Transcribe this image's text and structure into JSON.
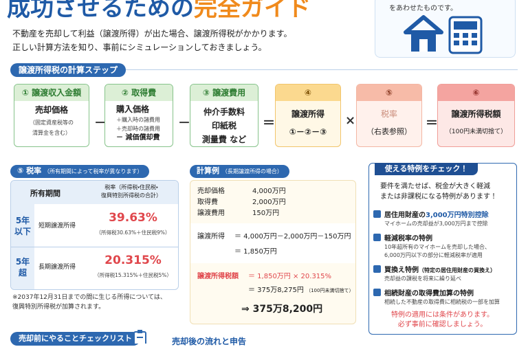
{
  "header": {
    "title": "成功させるための",
    "title_highlight": "完全ガイド",
    "corner_note": "をあわせたものです。"
  },
  "intro": [
    "不動産を売却して利益（譲渡所得）が出た場合、譲渡所得税がかかります。",
    "正しい計算方法を知り、事前にシミュレーションしておきましょう。"
  ],
  "steps_section": {
    "title": "譲渡所得税の計算ステップ",
    "steps": [
      {
        "number": "①",
        "title": "譲渡収入金額",
        "lines": [
          "売却価格",
          "（固定資産税等の",
          "清算金を含む）"
        ]
      },
      {
        "number": "②",
        "title": "取得費",
        "lines": [
          "購入価格",
          "＋購入時の諸費用",
          "＋売却時の諸費用",
          "－ 減価償却費"
        ]
      },
      {
        "number": "③",
        "title": "譲渡費用",
        "lines": [
          "仲介手数料",
          "印紙税",
          "測量費 など"
        ]
      },
      {
        "number": "④",
        "lines": [
          "譲渡所得",
          "①－②－③"
        ]
      },
      {
        "number": "⑤",
        "lines": [
          "税率",
          "（右表参照）"
        ]
      },
      {
        "number": "⑥",
        "lines": [
          "譲渡所得税額",
          "（100円未満切捨て）"
        ]
      }
    ],
    "operators": [
      "－",
      "－",
      "＝",
      "×",
      "＝"
    ]
  },
  "rates": {
    "number": "⑤",
    "title": "税率",
    "note": "（所有期間によって税率が異なります）",
    "col_period": "所有期間",
    "col_rate": [
      "税率（所得税・住民税・",
      "復興特別所得税の合計）"
    ],
    "rows": [
      {
        "period": [
          "5年",
          "以下"
        ],
        "type": "短期譲渡所得",
        "rate": "39.63%",
        "breakdown": "（所得税30.63%＋住民税9%）"
      },
      {
        "period": [
          "5年",
          "超"
        ],
        "type": "長期譲渡所得",
        "rate": "20.315%",
        "breakdown": "（所得税15.315%＋住民税5%）"
      }
    ],
    "footnote": [
      "※2037年12月31日までの間に生じる所得については、",
      "復興特別所得税が加算されます。"
    ]
  },
  "example": {
    "title": "計算例",
    "subtitle": "（長期譲渡所得の場合）",
    "items": [
      [
        "売却価格",
        "4,000万円"
      ],
      [
        "取得費",
        "2,000万円"
      ],
      [
        "譲渡費用",
        "150万円"
      ]
    ],
    "income": {
      "label": "譲渡所得",
      "lines": [
        "＝ 4,000万円－2,000万円－150万円",
        "＝ 1,850万円"
      ]
    },
    "tax": {
      "label": "譲渡所得税額",
      "lines": [
        "＝ 1,850万円 × 20.315%",
        "＝ 375万8,275円"
      ],
      "note": "（100円未満切捨て）",
      "result": "⇒ 375万8,200円"
    }
  },
  "special": {
    "title": "使える特例をチェック！",
    "intro": [
      "要件を満たせば、税金が大きく軽減",
      "または非課税になる特例があります！"
    ],
    "items": [
      {
        "title": "居住用財産の",
        "highlight": "3,000万円特別控除",
        "desc": [
          "マイホームの売却益が3,000万円まで控除"
        ]
      },
      {
        "title": "軽減税率の特例",
        "desc": [
          "10年超所有のマイホームを売却した場合、",
          "6,000万円以下の部分に軽減税率が適用"
        ]
      },
      {
        "title": "買換え特例",
        "sub": "（特定の居住用財産の買換え）",
        "desc": [
          "売却益の課税を将来に繰り延べ"
        ]
      },
      {
        "title": "相続財産の取得費加算の特例",
        "desc": [
          "相続した不動産の取得費に相続税の一部を加算"
        ]
      }
    ],
    "note": [
      "特例の適用には条件があります。",
      "必ず事前に確認しましょう。"
    ]
  },
  "footer": {
    "checklist": "売却前にやることチェックリスト",
    "flow": "売却後の流れと申告"
  }
}
